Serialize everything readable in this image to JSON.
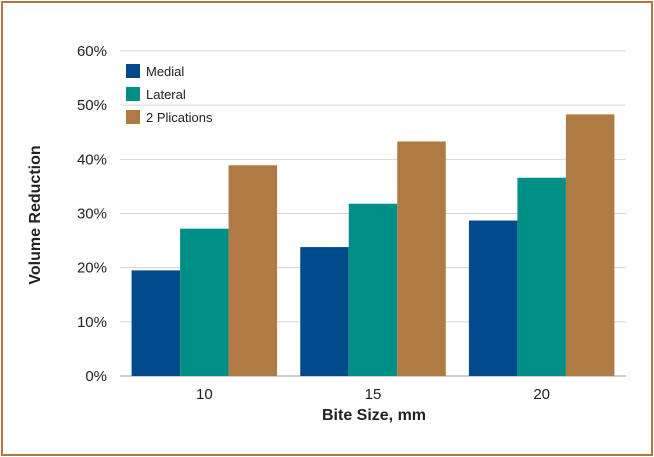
{
  "chart_data": {
    "type": "bar",
    "categories": [
      "10",
      "15",
      "20"
    ],
    "series": [
      {
        "name": "Medial",
        "values": [
          19.5,
          23.8,
          28.7
        ],
        "color": "#004a8c"
      },
      {
        "name": "Lateral",
        "values": [
          27.2,
          31.8,
          36.6
        ],
        "color": "#008f86"
      },
      {
        "name": "2 Plications",
        "values": [
          38.9,
          43.3,
          48.3
        ],
        "color": "#b07a44"
      }
    ],
    "xlabel": "Bite Size, mm",
    "ylabel": "Volume Reduction",
    "ylim": [
      0,
      60
    ],
    "yticks": [
      0,
      10,
      20,
      30,
      40,
      50,
      60
    ],
    "ytick_labels": [
      "0%",
      "10%",
      "20%",
      "30%",
      "40%",
      "50%",
      "60%"
    ],
    "grid": true,
    "legend": "top-left",
    "frame_color": "#b5773f"
  }
}
